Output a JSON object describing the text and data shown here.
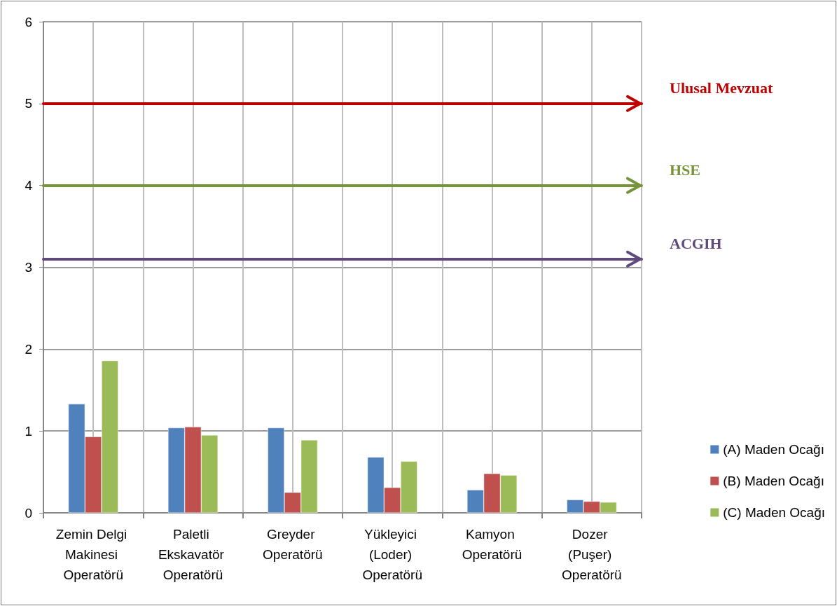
{
  "chart_data": {
    "type": "bar",
    "categories": [
      "Zemin Delgi Makinesi Operatörü",
      "Paletli Ekskavatör Operatörü",
      "Greyder Operatörü",
      "Yükleyici (Loder) Operatörü",
      "Kamyon Operatörü",
      "Dozer (Puşer) Operatörü"
    ],
    "series": [
      {
        "name": "(A) Maden Ocağı",
        "color": "#4f81bd",
        "values": [
          1.33,
          1.04,
          1.04,
          0.68,
          0.28,
          0.16
        ]
      },
      {
        "name": "(B) Maden Ocağı",
        "color": "#c0504d",
        "values": [
          0.93,
          1.05,
          0.25,
          0.31,
          0.48,
          0.14
        ]
      },
      {
        "name": "(C) Maden Ocağı",
        "color": "#9bbb59",
        "values": [
          1.86,
          0.95,
          0.89,
          0.63,
          0.46,
          0.13
        ]
      }
    ],
    "ylim": [
      0,
      6
    ],
    "yticks": [
      0,
      1,
      2,
      3,
      4,
      5,
      6
    ],
    "ref_lines": [
      {
        "axis": "y",
        "value": 5,
        "label": "Ulusal Mevzuat",
        "color": "#c00000"
      },
      {
        "axis": "y",
        "value": 4,
        "label": "HSE",
        "color": "#77933c"
      },
      {
        "axis": "y",
        "value": 3.1,
        "label": "ACGIH",
        "color": "#604a7b"
      }
    ],
    "grid": true,
    "legend": "right"
  }
}
